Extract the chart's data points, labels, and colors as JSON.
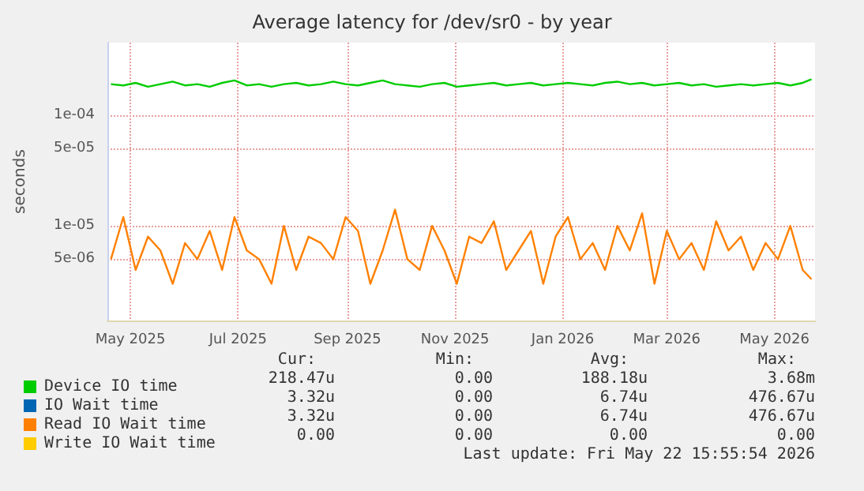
{
  "chart_data": {
    "type": "line",
    "title": "Average latency for /dev/sr0 - by year",
    "ylabel": "seconds",
    "x": [
      "2025-04-20",
      "2025-04-27",
      "2025-05-04",
      "2025-05-11",
      "2025-05-18",
      "2025-05-25",
      "2025-06-01",
      "2025-06-08",
      "2025-06-15",
      "2025-06-22",
      "2025-06-29",
      "2025-07-06",
      "2025-07-13",
      "2025-07-20",
      "2025-07-27",
      "2025-08-03",
      "2025-08-10",
      "2025-08-17",
      "2025-08-24",
      "2025-08-31",
      "2025-09-07",
      "2025-09-14",
      "2025-09-21",
      "2025-09-28",
      "2025-10-05",
      "2025-10-12",
      "2025-10-19",
      "2025-10-26",
      "2025-11-02",
      "2025-11-09",
      "2025-11-16",
      "2025-11-23",
      "2025-11-30",
      "2025-12-07",
      "2025-12-14",
      "2025-12-21",
      "2025-12-28",
      "2026-01-04",
      "2026-01-11",
      "2026-01-18",
      "2026-01-25",
      "2026-02-01",
      "2026-02-08",
      "2026-02-15",
      "2026-02-22",
      "2026-03-01",
      "2026-03-08",
      "2026-03-15",
      "2026-03-22",
      "2026-03-29",
      "2026-04-05",
      "2026-04-12",
      "2026-04-19",
      "2026-04-26",
      "2026-05-03",
      "2026-05-10",
      "2026-05-17",
      "2026-05-22"
    ],
    "series": [
      {
        "name": "Device IO time",
        "color": "#00cc00",
        "values": [
          0.00019,
          0.000185,
          0.000195,
          0.00018,
          0.00019,
          0.0002,
          0.000185,
          0.00019,
          0.00018,
          0.000195,
          0.000205,
          0.000185,
          0.00019,
          0.00018,
          0.00019,
          0.000195,
          0.000185,
          0.00019,
          0.0002,
          0.00019,
          0.000185,
          0.000195,
          0.000205,
          0.00019,
          0.000185,
          0.00018,
          0.00019,
          0.000195,
          0.00018,
          0.000185,
          0.00019,
          0.000195,
          0.000185,
          0.00019,
          0.000195,
          0.000185,
          0.00019,
          0.000195,
          0.00019,
          0.000185,
          0.000195,
          0.0002,
          0.00019,
          0.000195,
          0.000185,
          0.00019,
          0.000195,
          0.000185,
          0.00019,
          0.00018,
          0.000185,
          0.00019,
          0.000185,
          0.00019,
          0.000195,
          0.000185,
          0.000195,
          0.00021
        ]
      },
      {
        "name": "IO Wait time",
        "color": "#0066b3",
        "values": [
          null,
          null,
          null,
          null,
          null,
          null,
          null,
          null,
          null,
          null,
          null,
          null,
          null,
          null,
          null,
          null,
          null,
          null,
          null,
          null,
          null,
          null,
          null,
          null,
          null,
          null,
          null,
          null,
          null,
          null,
          null,
          null,
          null,
          null,
          null,
          null,
          null,
          null,
          null,
          null,
          null,
          null,
          null,
          null,
          null,
          null,
          null,
          null,
          null,
          null,
          null,
          null,
          null,
          null,
          null,
          null,
          null,
          null
        ]
      },
      {
        "name": "Read IO Wait time",
        "color": "#ff8000",
        "values": [
          5e-06,
          1.2e-05,
          4e-06,
          8e-06,
          6e-06,
          3e-06,
          7e-06,
          5e-06,
          9e-06,
          4e-06,
          1.2e-05,
          6e-06,
          5e-06,
          3e-06,
          1e-05,
          4e-06,
          8e-06,
          7e-06,
          5e-06,
          1.2e-05,
          9e-06,
          3e-06,
          6e-06,
          1.4e-05,
          5e-06,
          4e-06,
          1e-05,
          6e-06,
          3e-06,
          8e-06,
          7e-06,
          1.1e-05,
          4e-06,
          6e-06,
          9e-06,
          3e-06,
          8e-06,
          1.2e-05,
          5e-06,
          7e-06,
          4e-06,
          1e-05,
          6e-06,
          1.3e-05,
          3e-06,
          9e-06,
          5e-06,
          7e-06,
          4e-06,
          1.1e-05,
          6e-06,
          8e-06,
          4e-06,
          7e-06,
          5e-06,
          1e-05,
          4e-06,
          3.3e-06
        ]
      },
      {
        "name": "Write IO Wait time",
        "color": "#ffcc00",
        "values": [
          null,
          null,
          null,
          null,
          null,
          null,
          null,
          null,
          null,
          null,
          null,
          null,
          null,
          null,
          null,
          null,
          null,
          null,
          null,
          null,
          null,
          null,
          null,
          null,
          null,
          null,
          null,
          null,
          null,
          null,
          null,
          null,
          null,
          null,
          null,
          null,
          null,
          null,
          null,
          null,
          null,
          null,
          null,
          null,
          null,
          null,
          null,
          null,
          null,
          null,
          null,
          null,
          null,
          null,
          null,
          null,
          null,
          null
        ]
      }
    ],
    "log": "y",
    "ylim": [
      1.4e-06,
      0.00045
    ],
    "yticks": [
      {
        "value": 5e-06,
        "label": "5e-06"
      },
      {
        "value": 1e-05,
        "label": "1e-05"
      },
      {
        "value": 5e-05,
        "label": "5e-05"
      },
      {
        "value": 0.0001,
        "label": "1e-04"
      }
    ],
    "xlim": [
      "2025-04-18",
      "2026-05-24"
    ],
    "xticks": [
      {
        "value": "2025-05-01",
        "label": "May 2025"
      },
      {
        "value": "2025-07-01",
        "label": "Jul 2025"
      },
      {
        "value": "2025-09-01",
        "label": "Sep 2025"
      },
      {
        "value": "2025-11-01",
        "label": "Nov 2025"
      },
      {
        "value": "2026-01-01",
        "label": "Jan 2026"
      },
      {
        "value": "2026-03-01",
        "label": "Mar 2026"
      },
      {
        "value": "2026-05-01",
        "label": "May 2026"
      }
    ],
    "grid": true,
    "legend": "bottom",
    "marker": "none",
    "line_style": "solid",
    "annotations": [
      "Cur:",
      "Min:",
      "Avg:",
      "Max:",
      "218.47u",
      "0.00",
      "188.18u",
      "3.68m",
      "3.32u",
      "0.00",
      "6.74u",
      "476.67u",
      "3.32u",
      "0.00",
      "6.74u",
      "476.67u",
      "0.00",
      "0.00",
      "0.00",
      "0.00",
      "Last update: Fri May 22 15:55:54 2026"
    ]
  }
}
